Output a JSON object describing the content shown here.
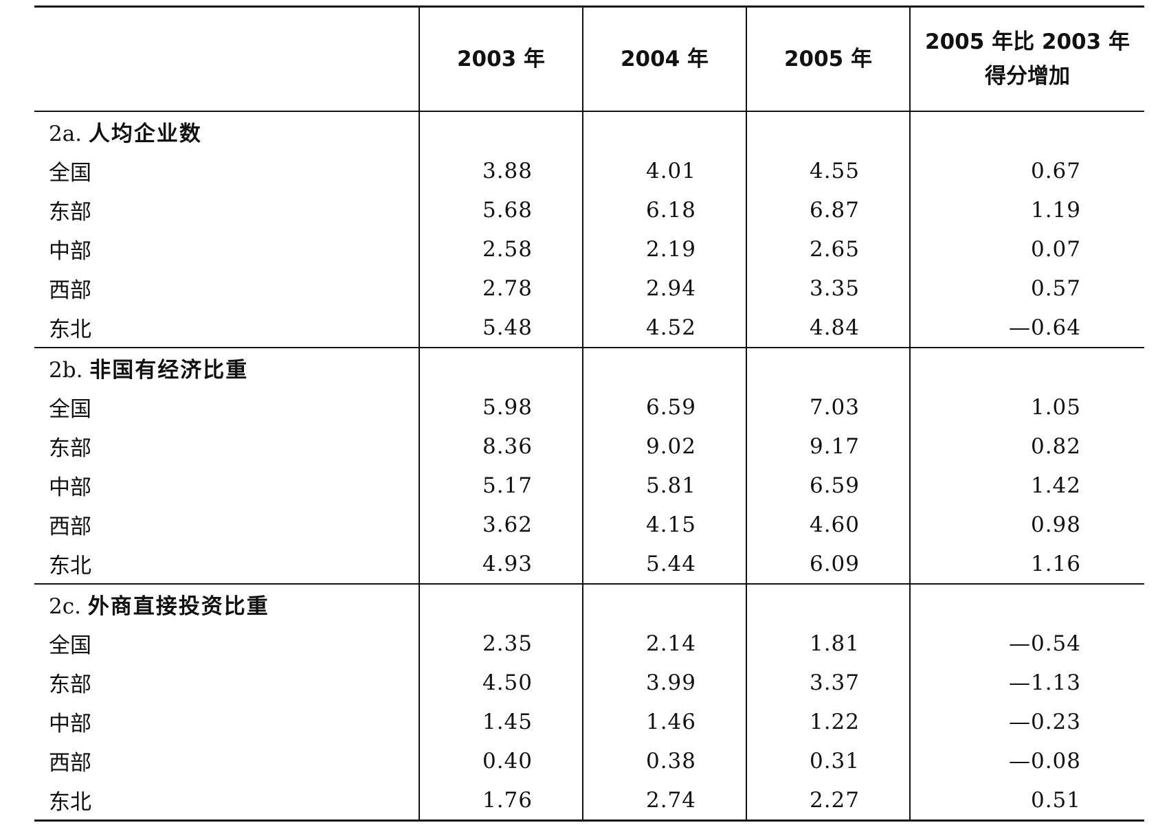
{
  "table": {
    "headers": [
      "",
      "2003 年",
      "2004 年",
      "2005 年",
      "2005 年比 2003 年",
      "得分增加"
    ],
    "sections": [
      {
        "code": "2a.",
        "title": "人均企业数",
        "rows": [
          {
            "region": "全国",
            "v2003": "3.88",
            "v2004": "4.01",
            "v2005": "4.55",
            "diff": "0.67"
          },
          {
            "region": "东部",
            "v2003": "5.68",
            "v2004": "6.18",
            "v2005": "6.87",
            "diff": "1.19"
          },
          {
            "region": "中部",
            "v2003": "2.58",
            "v2004": "2.19",
            "v2005": "2.65",
            "diff": "0.07"
          },
          {
            "region": "西部",
            "v2003": "2.78",
            "v2004": "2.94",
            "v2005": "3.35",
            "diff": "0.57"
          },
          {
            "region": "东北",
            "v2003": "5.48",
            "v2004": "4.52",
            "v2005": "4.84",
            "diff": "—0.64"
          }
        ]
      },
      {
        "code": "2b.",
        "title": "非国有经济比重",
        "rows": [
          {
            "region": "全国",
            "v2003": "5.98",
            "v2004": "6.59",
            "v2005": "7.03",
            "diff": "1.05"
          },
          {
            "region": "东部",
            "v2003": "8.36",
            "v2004": "9.02",
            "v2005": "9.17",
            "diff": "0.82"
          },
          {
            "region": "中部",
            "v2003": "5.17",
            "v2004": "5.81",
            "v2005": "6.59",
            "diff": "1.42"
          },
          {
            "region": "西部",
            "v2003": "3.62",
            "v2004": "4.15",
            "v2005": "4.60",
            "diff": "0.98"
          },
          {
            "region": "东北",
            "v2003": "4.93",
            "v2004": "5.44",
            "v2005": "6.09",
            "diff": "1.16"
          }
        ]
      },
      {
        "code": "2c.",
        "title": "外商直接投资比重",
        "rows": [
          {
            "region": "全国",
            "v2003": "2.35",
            "v2004": "2.14",
            "v2005": "1.81",
            "diff": "—0.54"
          },
          {
            "region": "东部",
            "v2003": "4.50",
            "v2004": "3.99",
            "v2005": "3.37",
            "diff": "—1.13"
          },
          {
            "region": "中部",
            "v2003": "1.45",
            "v2004": "1.46",
            "v2005": "1.22",
            "diff": "—0.23"
          },
          {
            "region": "西部",
            "v2003": "0.40",
            "v2004": "0.38",
            "v2005": "0.31",
            "diff": "—0.08"
          },
          {
            "region": "东北",
            "v2003": "1.76",
            "v2004": "2.74",
            "v2005": "2.27",
            "diff": "0.51"
          }
        ]
      }
    ]
  }
}
